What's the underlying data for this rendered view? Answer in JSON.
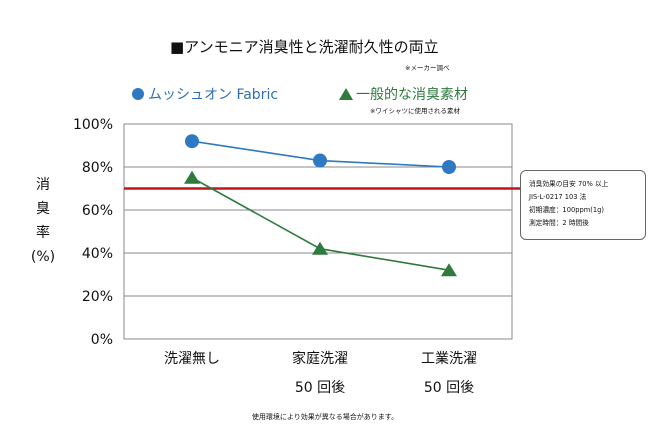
{
  "chart_data": {
    "type": "line",
    "title": "■アンモニア消臭性と洗濯耐久性の両立",
    "title_note": "※メーカー調べ",
    "ylabel": "消臭率(%)",
    "ylabel_chars": [
      "消",
      "臭",
      "率",
      "(%)"
    ],
    "ylim": [
      0,
      100
    ],
    "yticks": [
      "0%",
      "20%",
      "40%",
      "60%",
      "80%",
      "100%"
    ],
    "categories": [
      "洗濯無し",
      "家庭洗濯",
      "工業洗濯"
    ],
    "category_sublabels": [
      "",
      "50 回後",
      "50 回後"
    ],
    "series": [
      {
        "name": "ムッシュオン Fabric",
        "marker": "circle",
        "color": "#2e79c2",
        "values": [
          92,
          83,
          80
        ]
      },
      {
        "name": "一般的な消臭素材",
        "marker": "triangle",
        "color": "#2f7a3f",
        "values": [
          75,
          42,
          32
        ]
      }
    ],
    "legend_note": "※ワイシャツに使用される素材",
    "threshold": {
      "value": 70,
      "color": "#c0161b",
      "lines": [
        "消臭効果の目安  70% 以上",
        "JIS-L-0217  103 法",
        "初期濃度：100ppm(1g)",
        "測定時間：2 時間後"
      ]
    },
    "footer": "使用環境により効果が異なる場合があります。"
  }
}
